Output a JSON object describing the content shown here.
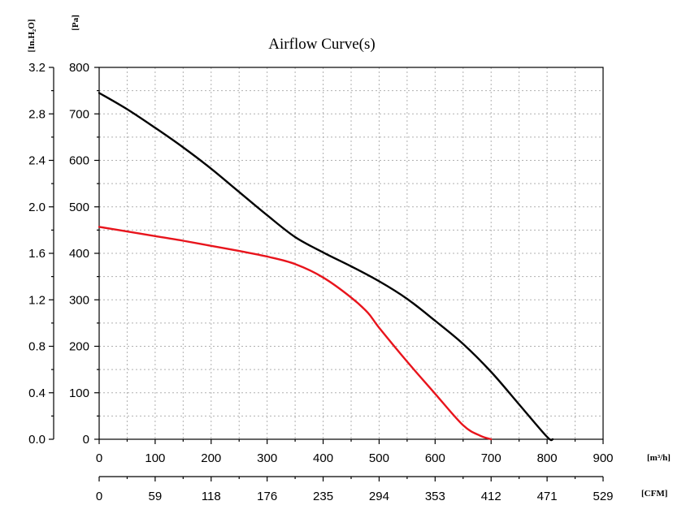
{
  "chart_data": {
    "type": "line",
    "title": "Airflow Curve(s)",
    "grid": true,
    "x_primary": {
      "unit_label": "[m³/h]",
      "range": [
        0,
        900
      ],
      "ticks": [
        0,
        100,
        200,
        300,
        400,
        500,
        600,
        700,
        800,
        900
      ]
    },
    "x_secondary": {
      "unit_label": "[CFM]",
      "ticks": [
        "0",
        "59",
        "118",
        "176",
        "235",
        "294",
        "353",
        "412",
        "471",
        "529"
      ]
    },
    "y_primary": {
      "unit_label": "[Pa]",
      "range": [
        0,
        800
      ],
      "ticks": [
        0,
        100,
        200,
        300,
        400,
        500,
        600,
        700,
        800
      ]
    },
    "y_secondary": {
      "unit_label": "[In.H₂O]",
      "ticks": [
        "0.0",
        "0.4",
        "0.8",
        "1.2",
        "1.6",
        "2.0",
        "2.4",
        "2.8",
        "3.2"
      ]
    },
    "series": [
      {
        "color": "#000000",
        "x": [
          0,
          50,
          100,
          150,
          200,
          250,
          300,
          350,
          400,
          450,
          500,
          550,
          600,
          650,
          700,
          750,
          800,
          810
        ],
        "y": [
          745,
          710,
          670,
          628,
          582,
          532,
          482,
          435,
          402,
          372,
          340,
          302,
          255,
          205,
          145,
          75,
          5,
          0
        ]
      },
      {
        "color": "#e8141c",
        "x": [
          0,
          50,
          100,
          150,
          200,
          250,
          300,
          350,
          400,
          450,
          480,
          500,
          550,
          600,
          650,
          680,
          700
        ],
        "y": [
          457,
          447,
          437,
          427,
          416,
          405,
          393,
          377,
          348,
          305,
          272,
          240,
          167,
          98,
          30,
          8,
          0
        ]
      }
    ]
  }
}
